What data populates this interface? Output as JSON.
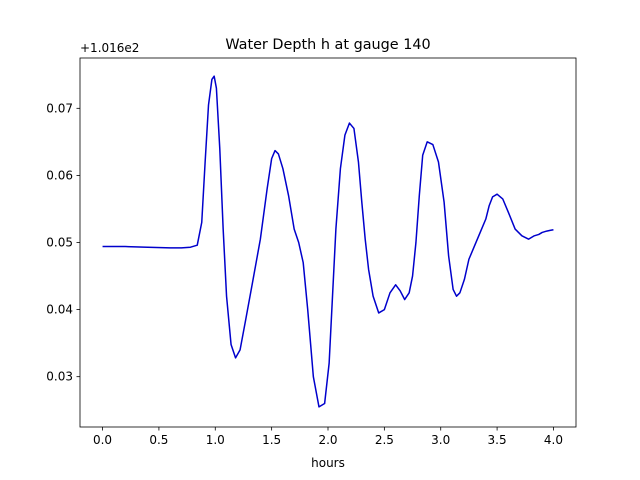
{
  "chart_data": {
    "type": "line",
    "title": "Water Depth h at gauge 140",
    "xlabel": "hours",
    "ylabel": "",
    "y_offset_label": "+1.016e2",
    "y_offset": 101.6,
    "xlim": [
      -0.2,
      4.2
    ],
    "ylim": [
      0.0225,
      0.0775
    ],
    "x_ticks": [
      0.0,
      0.5,
      1.0,
      1.5,
      2.0,
      2.5,
      3.0,
      3.5,
      4.0
    ],
    "x_tick_labels": [
      "0.0",
      "0.5",
      "1.0",
      "1.5",
      "2.0",
      "2.5",
      "3.0",
      "3.5",
      "4.0"
    ],
    "y_ticks": [
      0.03,
      0.04,
      0.05,
      0.06,
      0.07
    ],
    "y_tick_labels": [
      "0.03",
      "0.04",
      "0.05",
      "0.06",
      "0.07"
    ],
    "grid": false,
    "series": [
      {
        "color": "#0000cc",
        "x": [
          0.0,
          0.2,
          0.4,
          0.6,
          0.7,
          0.78,
          0.84,
          0.88,
          0.91,
          0.94,
          0.97,
          0.99,
          1.01,
          1.04,
          1.07,
          1.1,
          1.14,
          1.18,
          1.22,
          1.27,
          1.33,
          1.4,
          1.46,
          1.5,
          1.53,
          1.56,
          1.6,
          1.65,
          1.7,
          1.74,
          1.78,
          1.82,
          1.87,
          1.92,
          1.97,
          2.01,
          2.04,
          2.07,
          2.11,
          2.15,
          2.19,
          2.23,
          2.27,
          2.3,
          2.33,
          2.36,
          2.4,
          2.45,
          2.5,
          2.55,
          2.6,
          2.64,
          2.68,
          2.72,
          2.75,
          2.78,
          2.81,
          2.84,
          2.88,
          2.93,
          2.98,
          3.03,
          3.07,
          3.11,
          3.14,
          3.17,
          3.21,
          3.25,
          3.3,
          3.35,
          3.4,
          3.43,
          3.46,
          3.5,
          3.55,
          3.6,
          3.66,
          3.72,
          3.78,
          3.83,
          3.87,
          3.9,
          3.94,
          3.97,
          4.0
        ],
        "y": [
          0.0494,
          0.0494,
          0.0493,
          0.0492,
          0.0492,
          0.0493,
          0.0496,
          0.053,
          0.062,
          0.0705,
          0.0743,
          0.0748,
          0.073,
          0.064,
          0.052,
          0.042,
          0.0348,
          0.0328,
          0.034,
          0.0385,
          0.044,
          0.0505,
          0.058,
          0.0625,
          0.0637,
          0.0632,
          0.061,
          0.057,
          0.052,
          0.05,
          0.047,
          0.04,
          0.03,
          0.0255,
          0.026,
          0.032,
          0.042,
          0.052,
          0.061,
          0.066,
          0.0678,
          0.067,
          0.062,
          0.056,
          0.0505,
          0.046,
          0.042,
          0.0395,
          0.04,
          0.0425,
          0.0437,
          0.0428,
          0.0415,
          0.0425,
          0.045,
          0.05,
          0.057,
          0.063,
          0.065,
          0.0646,
          0.062,
          0.056,
          0.048,
          0.043,
          0.042,
          0.0425,
          0.0445,
          0.0475,
          0.0495,
          0.0515,
          0.0535,
          0.0555,
          0.0568,
          0.0572,
          0.0565,
          0.0545,
          0.052,
          0.051,
          0.0505,
          0.051,
          0.0512,
          0.0515,
          0.0517,
          0.0518,
          0.0519
        ]
      }
    ]
  }
}
